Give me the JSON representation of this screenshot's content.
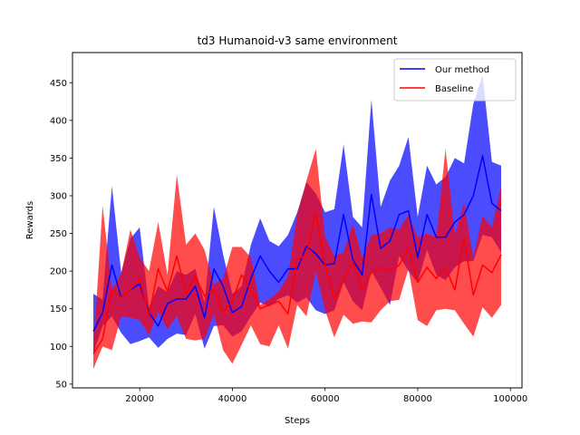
{
  "chart_data": {
    "type": "line",
    "title": "td3 Humanoid-v3 same environment",
    "xlabel": "Steps",
    "ylabel": "Rewards",
    "xlim": [
      5500,
      102500
    ],
    "ylim": [
      45,
      490
    ],
    "xticks": [
      20000,
      40000,
      60000,
      80000,
      100000
    ],
    "yticks": [
      50,
      100,
      150,
      200,
      250,
      300,
      350,
      400,
      450
    ],
    "grid": false,
    "legend_position": "top-right",
    "x": [
      10000,
      12000,
      14000,
      16000,
      18000,
      20000,
      22000,
      24000,
      26000,
      28000,
      30000,
      32000,
      34000,
      36000,
      38000,
      40000,
      42000,
      44000,
      46000,
      48000,
      50000,
      52000,
      54000,
      56000,
      58000,
      60000,
      62000,
      64000,
      66000,
      68000,
      70000,
      72000,
      74000,
      76000,
      78000,
      80000,
      82000,
      84000,
      86000,
      88000,
      90000,
      92000,
      94000,
      96000,
      98000
    ],
    "series": [
      {
        "name": "Our method",
        "color": "#0000ff",
        "values": [
          120,
          145,
          208,
          165,
          175,
          183,
          145,
          127,
          157,
          163,
          163,
          180,
          138,
          203,
          180,
          145,
          153,
          190,
          220,
          200,
          185,
          203,
          203,
          233,
          223,
          208,
          210,
          275,
          215,
          195,
          302,
          230,
          240,
          275,
          280,
          218,
          275,
          245,
          245,
          265,
          275,
          300,
          353,
          290,
          280
        ],
        "upper": [
          170,
          162,
          313,
          198,
          243,
          258,
          152,
          180,
          172,
          200,
          195,
          203,
          158,
          285,
          222,
          170,
          180,
          235,
          270,
          240,
          233,
          248,
          278,
          318,
          303,
          278,
          282,
          368,
          272,
          258,
          428,
          285,
          320,
          340,
          378,
          272,
          340,
          315,
          325,
          350,
          343,
          422,
          460,
          345,
          340
        ],
        "lower": [
          90,
          127,
          140,
          118,
          103,
          107,
          112,
          98,
          110,
          117,
          115,
          143,
          97,
          127,
          128,
          113,
          120,
          140,
          158,
          153,
          163,
          168,
          158,
          165,
          148,
          143,
          148,
          185,
          160,
          148,
          200,
          178,
          155,
          220,
          200,
          185,
          228,
          195,
          188,
          205,
          213,
          213,
          248,
          245,
          225
        ]
      },
      {
        "name": "Baseline",
        "color": "#ff0000",
        "values": [
          90,
          110,
          175,
          165,
          175,
          190,
          140,
          203,
          173,
          220,
          170,
          193,
          167,
          176,
          145,
          160,
          195,
          175,
          150,
          155,
          160,
          143,
          215,
          222,
          278,
          208,
          163,
          188,
          213,
          175,
          198,
          205,
          200,
          208,
          230,
          185,
          205,
          190,
          205,
          175,
          243,
          168,
          208,
          198,
          222
        ],
        "upper": [
          95,
          287,
          175,
          196,
          255,
          218,
          200,
          265,
          195,
          328,
          235,
          250,
          228,
          182,
          190,
          232,
          232,
          218,
          155,
          163,
          173,
          193,
          275,
          320,
          362,
          245,
          220,
          225,
          263,
          218,
          248,
          250,
          258,
          255,
          275,
          245,
          250,
          245,
          362,
          248,
          290,
          218,
          273,
          258,
          313
        ],
        "lower": [
          70,
          100,
          95,
          140,
          138,
          135,
          115,
          145,
          123,
          140,
          110,
          108,
          110,
          143,
          95,
          77,
          102,
          128,
          103,
          100,
          128,
          97,
          155,
          140,
          200,
          148,
          112,
          142,
          130,
          133,
          132,
          148,
          160,
          162,
          203,
          135,
          127,
          148,
          150,
          148,
          130,
          113,
          152,
          138,
          155
        ]
      }
    ]
  }
}
